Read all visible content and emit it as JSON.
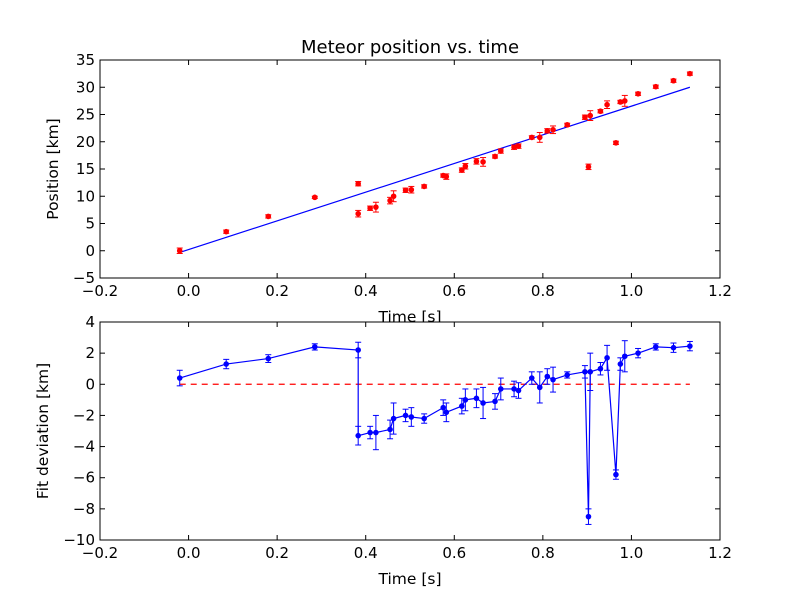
{
  "chart_data": [
    {
      "type": "scatter",
      "title": "Meteor position vs. time",
      "xlabel": "Time [s]",
      "ylabel": "Position [km]",
      "xlim": [
        -0.2,
        1.2
      ],
      "ylim": [
        -5,
        35
      ],
      "x_ticks": [
        -0.2,
        0.0,
        0.2,
        0.4,
        0.6,
        0.8,
        1.0,
        1.2
      ],
      "y_ticks": [
        -5,
        0,
        5,
        10,
        15,
        20,
        25,
        30,
        35
      ],
      "x_tick_labels": [
        "−0.2",
        "0.0",
        "0.2",
        "0.4",
        "0.6",
        "0.8",
        "1.0",
        "1.2"
      ],
      "y_tick_labels": [
        "−5",
        "0",
        "5",
        "10",
        "15",
        "20",
        "25",
        "30",
        "35"
      ],
      "grid": false,
      "colors": {
        "points": "#ff0000",
        "fit": "#0000ff"
      },
      "series": [
        {
          "kind": "scatter-errorbar",
          "x": [
            -0.02,
            0.085,
            0.18,
            0.285,
            0.383,
            0.383,
            0.41,
            0.423,
            0.455,
            0.463,
            0.49,
            0.503,
            0.532,
            0.575,
            0.582,
            0.617,
            0.625,
            0.65,
            0.665,
            0.692,
            0.705,
            0.735,
            0.745,
            0.775,
            0.793,
            0.81,
            0.823,
            0.855,
            0.895,
            0.903,
            0.907,
            0.93,
            0.945,
            0.965,
            0.975,
            0.985,
            1.015,
            1.055,
            1.095,
            1.132
          ],
          "y": [
            0.0,
            3.5,
            6.3,
            9.8,
            12.3,
            6.8,
            7.8,
            8.0,
            9.2,
            10.0,
            11.1,
            11.2,
            11.8,
            13.8,
            13.6,
            14.8,
            15.5,
            16.4,
            16.3,
            17.3,
            18.3,
            19.0,
            19.2,
            20.8,
            20.8,
            22.0,
            22.2,
            23.1,
            24.5,
            15.4,
            24.8,
            25.6,
            26.8,
            19.8,
            27.3,
            27.5,
            28.8,
            30.1,
            31.2,
            32.5
          ],
          "yerr": [
            0.5,
            0.3,
            0.3,
            0.2,
            0.4,
            0.6,
            0.4,
            0.9,
            0.6,
            1.0,
            0.4,
            0.6,
            0.3,
            0.3,
            0.5,
            0.4,
            0.5,
            0.5,
            0.8,
            0.3,
            0.4,
            0.4,
            0.4,
            0.3,
            0.9,
            0.4,
            0.7,
            0.3,
            0.4,
            0.5,
            0.9,
            0.3,
            0.7,
            0.3,
            0.3,
            1.0,
            0.3,
            0.3,
            0.3,
            0.3
          ]
        },
        {
          "kind": "line",
          "x": [
            -0.02,
            1.132
          ],
          "y": [
            -0.3,
            30.0
          ]
        }
      ]
    },
    {
      "type": "line",
      "title": "",
      "xlabel": "Time [s]",
      "ylabel": "Fit deviation [km]",
      "xlim": [
        -0.2,
        1.2
      ],
      "ylim": [
        -10,
        4
      ],
      "x_ticks": [
        -0.2,
        0.0,
        0.2,
        0.4,
        0.6,
        0.8,
        1.0,
        1.2
      ],
      "y_ticks": [
        -10,
        -8,
        -6,
        -4,
        -2,
        0,
        2,
        4
      ],
      "x_tick_labels": [
        "−0.2",
        "0.0",
        "0.2",
        "0.4",
        "0.6",
        "0.8",
        "1.0",
        "1.2"
      ],
      "y_tick_labels": [
        "−10",
        "−8",
        "−6",
        "−4",
        "−2",
        "0",
        "2",
        "4"
      ],
      "grid": false,
      "colors": {
        "series": "#0000ff",
        "reference": "#ff0000"
      },
      "series": [
        {
          "kind": "line-errorbar",
          "x": [
            -0.02,
            0.085,
            0.18,
            0.285,
            0.383,
            0.383,
            0.41,
            0.423,
            0.455,
            0.463,
            0.49,
            0.503,
            0.532,
            0.575,
            0.582,
            0.617,
            0.625,
            0.65,
            0.665,
            0.692,
            0.705,
            0.735,
            0.745,
            0.775,
            0.793,
            0.81,
            0.823,
            0.855,
            0.895,
            0.903,
            0.907,
            0.93,
            0.945,
            0.965,
            0.975,
            0.985,
            1.015,
            1.055,
            1.095,
            1.132
          ],
          "y": [
            0.4,
            1.3,
            1.65,
            2.4,
            2.2,
            -3.3,
            -3.1,
            -3.1,
            -2.9,
            -2.2,
            -2.0,
            -2.1,
            -2.2,
            -1.5,
            -1.8,
            -1.4,
            -1.0,
            -0.9,
            -1.2,
            -1.1,
            -0.3,
            -0.3,
            -0.4,
            0.4,
            -0.2,
            0.5,
            0.3,
            0.6,
            0.8,
            -8.5,
            0.8,
            1.0,
            1.7,
            -5.8,
            1.3,
            1.8,
            2.0,
            2.4,
            2.35,
            2.45
          ],
          "yerr": [
            0.5,
            0.3,
            0.25,
            0.2,
            0.5,
            0.6,
            0.4,
            1.1,
            0.6,
            1.0,
            0.4,
            0.6,
            0.3,
            0.5,
            0.6,
            0.5,
            0.7,
            0.6,
            1.0,
            0.5,
            0.7,
            0.5,
            0.5,
            0.4,
            1.0,
            0.5,
            0.8,
            0.2,
            0.4,
            0.5,
            1.2,
            0.4,
            0.8,
            0.3,
            0.4,
            1.0,
            0.3,
            0.2,
            0.3,
            0.3
          ]
        },
        {
          "kind": "reference-line",
          "x": [
            -0.02,
            1.132
          ],
          "y": [
            0,
            0
          ]
        }
      ]
    }
  ]
}
